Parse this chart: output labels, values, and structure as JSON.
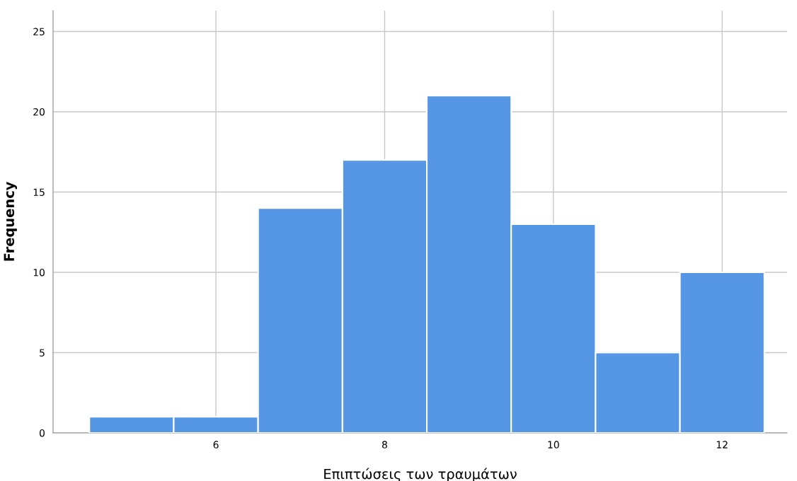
{
  "chart_data": {
    "type": "histogram",
    "xlabel": "Επιπτώσεις των τραυμάτων",
    "ylabel": "Frequency",
    "bins": [
      4.5,
      5.5,
      6.5,
      7.5,
      8.5,
      9.5,
      10.5,
      11.5,
      12.5
    ],
    "values": [
      1,
      1,
      14,
      17,
      21,
      13,
      5,
      10
    ],
    "color": "#5596e5",
    "xlim": [
      4.07,
      12.77
    ],
    "xticks": [
      6,
      8,
      10,
      12
    ],
    "ylim": [
      0,
      26.3
    ],
    "yticks": [
      0,
      5,
      10,
      15,
      20,
      25
    ],
    "grid": true
  }
}
